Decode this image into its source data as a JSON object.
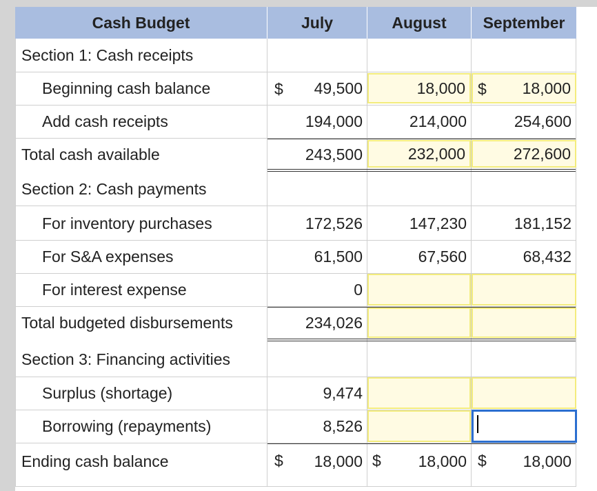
{
  "header": {
    "title": "Cash Budget",
    "months": [
      "July",
      "August",
      "September"
    ]
  },
  "rows": {
    "section1": "Section 1: Cash receipts",
    "beginning_cash": {
      "label": "Beginning cash balance",
      "july": "49,500",
      "august": "18,000",
      "september": "18,000"
    },
    "add_receipts": {
      "label": "Add cash receipts",
      "july": "194,000",
      "august": "214,000",
      "september": "254,600"
    },
    "total_available": {
      "label": "Total cash available",
      "july": "243,500",
      "august": "232,000",
      "september": "272,600"
    },
    "section2": "Section 2: Cash payments",
    "inventory": {
      "label": "For inventory purchases",
      "july": "172,526",
      "august": "147,230",
      "september": "181,152"
    },
    "sa_expenses": {
      "label": "For S&A expenses",
      "july": "61,500",
      "august": "67,560",
      "september": "68,432"
    },
    "interest": {
      "label": "For interest expense",
      "july": "0",
      "august": "",
      "september": ""
    },
    "total_disb": {
      "label": "Total budgeted disbursements",
      "july": "234,026",
      "august": "",
      "september": ""
    },
    "section3": "Section 3: Financing activities",
    "surplus": {
      "label": "Surplus (shortage)",
      "july": "9,474",
      "august": "",
      "september": ""
    },
    "borrowing": {
      "label": "Borrowing (repayments)",
      "july": "8,526",
      "august": "",
      "september": ""
    },
    "ending_cash": {
      "label": "Ending cash balance",
      "july": "18,000",
      "august": "18,000",
      "september": "18,000"
    }
  },
  "currency_symbol": "$"
}
